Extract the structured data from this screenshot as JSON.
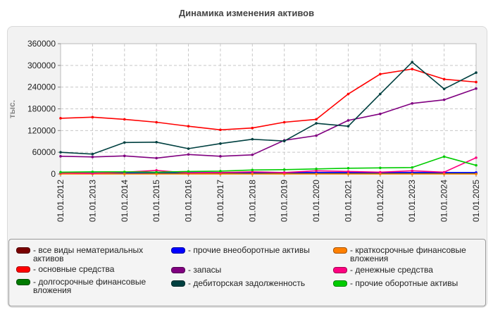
{
  "chart_data": {
    "type": "line",
    "title": "Динамика изменения активов",
    "ylabel": "тыс.",
    "xlabel": "",
    "ylim": [
      0,
      360000
    ],
    "yticks": [
      "0",
      "60000",
      "120000",
      "180000",
      "240000",
      "300000",
      "360000"
    ],
    "yticks_values": [
      0,
      60000,
      120000,
      180000,
      240000,
      300000,
      360000
    ],
    "categories": [
      "01.01.2012",
      "01.01.2013",
      "01.01.2014",
      "01.01.2015",
      "01.01.2016",
      "01.01.2017",
      "01.01.2018",
      "01.01.2019",
      "01.01.2020",
      "01.01.2021",
      "01.01.2022",
      "01.01.2023",
      "01.01.2024",
      "01.01.2025"
    ],
    "grid": true,
    "legend_position": "bottom",
    "series": [
      {
        "name": "- все виды нематериальных активов",
        "color": "#7a0000",
        "values": [
          1000,
          1000,
          1000,
          1000,
          1000,
          1000,
          1000,
          1000,
          1000,
          1000,
          1000,
          1000,
          1000,
          1000
        ]
      },
      {
        "name": "- основные средства",
        "color": "#ff0000",
        "values": [
          154000,
          157000,
          151000,
          143000,
          132000,
          122000,
          127000,
          143000,
          151000,
          221000,
          276000,
          290000,
          262000,
          254000
        ]
      },
      {
        "name": "- долгосрочные финансовые вложения",
        "color": "#007a00",
        "values": [
          2000,
          2000,
          2000,
          2000,
          2000,
          2000,
          2000,
          2000,
          2000,
          2000,
          2000,
          2000,
          2000,
          2000
        ]
      },
      {
        "name": "- прочие внеоборотные активы",
        "color": "#0000ff",
        "values": [
          3000,
          3000,
          3000,
          4000,
          4000,
          4000,
          4000,
          4000,
          4000,
          4000,
          4000,
          4000,
          4000,
          4000
        ]
      },
      {
        "name": "- запасы",
        "color": "#800080",
        "values": [
          49000,
          47000,
          50000,
          44000,
          54000,
          49000,
          53000,
          93000,
          106000,
          148000,
          166000,
          195000,
          205000,
          236000
        ]
      },
      {
        "name": "- дебиторская задолженность",
        "color": "#004040",
        "values": [
          60000,
          55000,
          87000,
          88000,
          70000,
          84000,
          96000,
          91000,
          140000,
          132000,
          221000,
          309000,
          235000,
          280000
        ]
      },
      {
        "name": "- краткосрочные финансовые вложения",
        "color": "#ff8000",
        "values": [
          0,
          0,
          0,
          0,
          0,
          0,
          0,
          0,
          0,
          0,
          0,
          0,
          0,
          0
        ]
      },
      {
        "name": "- денежные средства",
        "color": "#ff0080",
        "values": [
          3000,
          2000,
          5000,
          10000,
          3000,
          4000,
          6000,
          4000,
          9000,
          7000,
          5000,
          9000,
          5000,
          45000
        ]
      },
      {
        "name": "- прочие оборотные активы",
        "color": "#00cc00",
        "values": [
          5000,
          6000,
          6000,
          5000,
          7000,
          8000,
          11000,
          12000,
          14000,
          16000,
          17000,
          18000,
          48000,
          24000
        ]
      }
    ]
  }
}
